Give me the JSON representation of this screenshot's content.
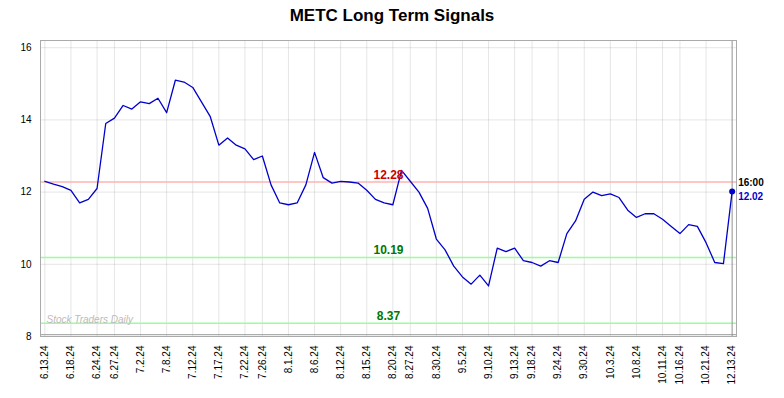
{
  "chart_data": {
    "type": "line",
    "title": "METC Long Term Signals",
    "color": "#0000cc",
    "categories": [
      "6.13.24",
      null,
      null,
      "6.18.24",
      null,
      null,
      "6.24.24",
      null,
      "6.27.24",
      null,
      null,
      "7.2.24",
      null,
      null,
      "7.8.24",
      null,
      null,
      "7.12.24",
      null,
      null,
      "7.17.24",
      null,
      null,
      "7.22.24",
      null,
      "7.26.24",
      null,
      null,
      "8.1.24",
      null,
      null,
      "8.6.24",
      null,
      null,
      "8.12.24",
      null,
      null,
      "8.15.24",
      null,
      null,
      "8.20.24",
      null,
      "8.27.24",
      null,
      null,
      "8.30.24",
      null,
      null,
      "9.5.24",
      null,
      null,
      "9.10.24",
      null,
      null,
      "9.13.24",
      null,
      "9.18.24",
      null,
      null,
      "9.24.24",
      null,
      null,
      "9.30.24",
      null,
      null,
      "10.3.24",
      null,
      null,
      "10.8.24",
      null,
      null,
      "10.11.24",
      null,
      "10.16.24",
      null,
      null,
      "10.21.24",
      null,
      null,
      "12.13.24"
    ],
    "values": [
      12.3,
      12.22,
      12.15,
      12.05,
      11.7,
      11.8,
      12.1,
      13.9,
      14.05,
      14.4,
      14.3,
      14.5,
      14.45,
      14.6,
      14.2,
      15.1,
      15.05,
      14.9,
      14.5,
      14.1,
      13.3,
      13.5,
      13.3,
      13.2,
      12.9,
      13.0,
      12.2,
      11.7,
      11.65,
      11.7,
      12.2,
      13.1,
      12.4,
      12.25,
      12.3,
      12.28,
      12.25,
      12.05,
      11.8,
      11.7,
      11.65,
      12.6,
      12.3,
      12.0,
      11.55,
      10.7,
      10.4,
      9.95,
      9.65,
      9.45,
      9.7,
      9.4,
      10.45,
      10.35,
      10.45,
      10.1,
      10.05,
      9.95,
      10.1,
      10.05,
      10.85,
      11.2,
      11.8,
      12.0,
      11.9,
      11.95,
      11.85,
      11.5,
      11.3,
      11.4,
      11.4,
      11.25,
      11.05,
      10.85,
      11.1,
      11.05,
      10.6,
      10.05,
      10.02,
      12.02
    ],
    "ylim": [
      8,
      16.2
    ],
    "yticks": [
      8,
      10,
      12,
      14,
      16
    ],
    "grid": true,
    "hlines": [
      {
        "y": 12.28,
        "color": "#ffb3b3",
        "label": "12.28",
        "label_color": "#cc0000"
      },
      {
        "y": 10.19,
        "color": "#99ff99",
        "label": "10.19",
        "label_color": "#007700"
      },
      {
        "y": 8.37,
        "color": "#99ff99",
        "label": "8.37",
        "label_color": "#007700"
      },
      {
        "y": 8.05,
        "color": "#999999"
      }
    ],
    "vline_color": "#888888",
    "end_labels": [
      {
        "text": "16:00",
        "color": "#000000"
      },
      {
        "text": "12.02",
        "color": "#0000cc"
      }
    ],
    "watermark": {
      "text": "Stock Traders Daily",
      "color": "#bbbbbb"
    }
  }
}
